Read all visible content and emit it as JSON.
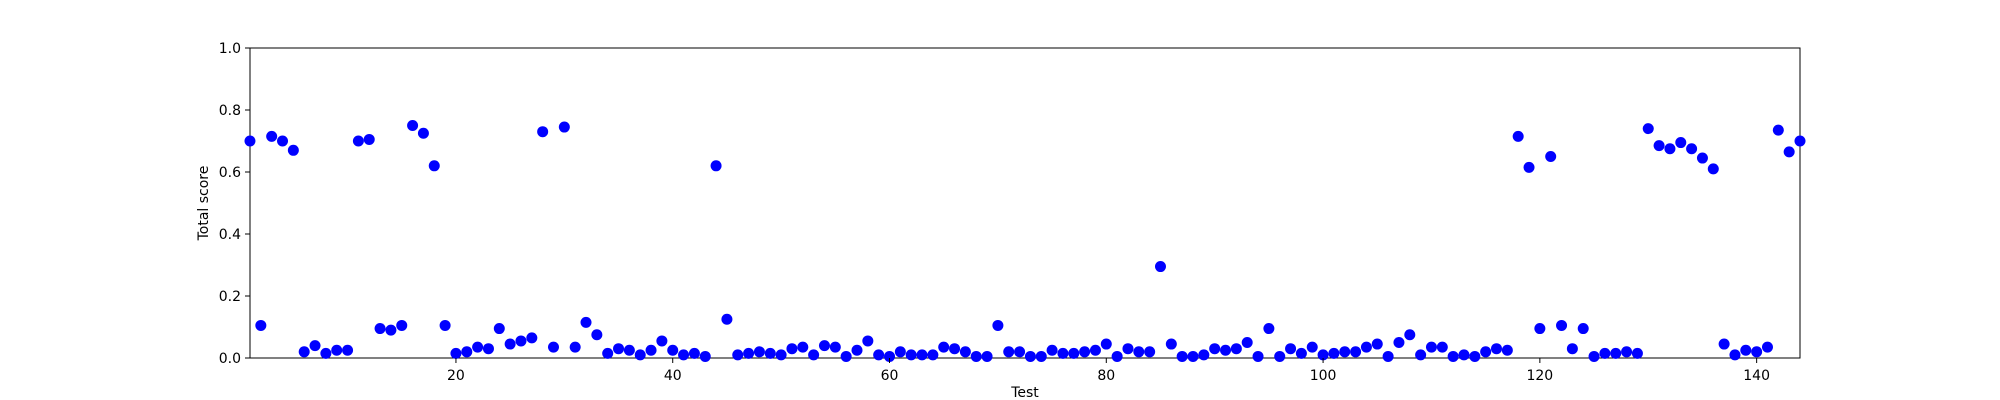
{
  "chart_data": {
    "type": "scatter",
    "title": "",
    "xlabel": "Test",
    "ylabel": "Total score",
    "xlim": [
      1,
      144
    ],
    "ylim": [
      0,
      1.0
    ],
    "x_ticks": [
      20,
      40,
      60,
      80,
      100,
      120,
      140
    ],
    "y_ticks": [
      0.0,
      0.2,
      0.4,
      0.6,
      0.8,
      1.0
    ],
    "x_tick_labels": [
      "20",
      "40",
      "60",
      "80",
      "100",
      "120",
      "140"
    ],
    "y_tick_labels": [
      "0.0",
      "0.2",
      "0.4",
      "0.6",
      "0.8",
      "1.0"
    ],
    "grid": false,
    "legend": "none",
    "marker_color": "#0000ff",
    "series": [
      {
        "x": [
          1,
          2,
          3,
          4,
          5,
          6,
          7,
          8,
          9,
          10,
          11,
          12,
          13,
          14,
          15,
          16,
          17,
          18,
          19,
          20,
          21,
          22,
          23,
          24,
          25,
          26,
          27,
          28,
          29,
          30,
          31,
          32,
          33,
          34,
          35,
          36,
          37,
          38,
          39,
          40,
          41,
          42,
          43,
          44,
          45,
          46,
          47,
          48,
          49,
          50,
          51,
          52,
          53,
          54,
          55,
          56,
          57,
          58,
          59,
          60,
          61,
          62,
          63,
          64,
          65,
          66,
          67,
          68,
          69,
          70,
          71,
          72,
          73,
          74,
          75,
          76,
          77,
          78,
          79,
          80,
          81,
          82,
          83,
          84,
          85,
          86,
          87,
          88,
          89,
          90,
          91,
          92,
          93,
          94,
          95,
          96,
          97,
          98,
          99,
          100,
          101,
          102,
          103,
          104,
          105,
          106,
          107,
          108,
          109,
          110,
          111,
          112,
          113,
          114,
          115,
          116,
          117,
          118,
          119,
          120,
          121,
          122,
          123,
          124,
          125,
          126,
          127,
          128,
          129,
          130,
          131,
          132,
          133,
          134,
          135,
          136,
          137,
          138,
          139,
          140,
          141,
          142,
          143,
          144
        ],
        "y": [
          0.7,
          0.105,
          0.715,
          0.7,
          0.67,
          0.02,
          0.04,
          0.015,
          0.025,
          0.025,
          0.7,
          0.705,
          0.095,
          0.09,
          0.105,
          0.75,
          0.725,
          0.62,
          0.105,
          0.015,
          0.02,
          0.035,
          0.03,
          0.095,
          0.045,
          0.055,
          0.065,
          0.73,
          0.035,
          0.745,
          0.035,
          0.115,
          0.075,
          0.015,
          0.03,
          0.025,
          0.01,
          0.025,
          0.055,
          0.025,
          0.01,
          0.015,
          0.005,
          0.62,
          0.125,
          0.01,
          0.015,
          0.02,
          0.015,
          0.01,
          0.03,
          0.035,
          0.01,
          0.04,
          0.035,
          0.005,
          0.025,
          0.055,
          0.01,
          0.005,
          0.02,
          0.01,
          0.01,
          0.01,
          0.035,
          0.03,
          0.02,
          0.005,
          0.005,
          0.105,
          0.02,
          0.02,
          0.005,
          0.005,
          0.025,
          0.015,
          0.015,
          0.02,
          0.025,
          0.045,
          0.005,
          0.03,
          0.02,
          0.02,
          0.295,
          0.045,
          0.005,
          0.005,
          0.01,
          0.03,
          0.025,
          0.03,
          0.05,
          0.005,
          0.095,
          0.005,
          0.03,
          0.015,
          0.035,
          0.01,
          0.015,
          0.02,
          0.02,
          0.035,
          0.045,
          0.005,
          0.05,
          0.075,
          0.01,
          0.035,
          0.035,
          0.005,
          0.01,
          0.005,
          0.02,
          0.03,
          0.025,
          0.715,
          0.615,
          0.095,
          0.65,
          0.105,
          0.03,
          0.095,
          0.005,
          0.015,
          0.015,
          0.02,
          0.015,
          0.74,
          0.685,
          0.675,
          0.695,
          0.675,
          0.645,
          0.61,
          0.045,
          0.01,
          0.025,
          0.02,
          0.035,
          0.735,
          0.665,
          0.7
        ]
      }
    ]
  }
}
